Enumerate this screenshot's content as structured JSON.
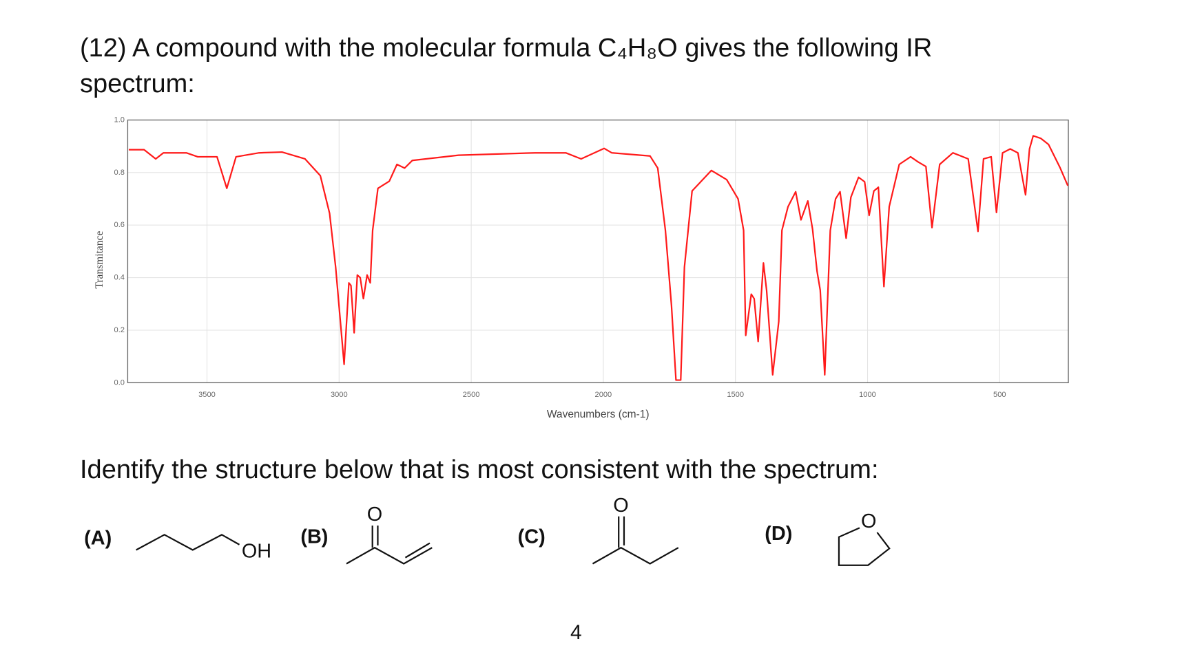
{
  "question": {
    "intro": "(12) A compound with the molecular formula C₄H₈O gives the following IR spectrum:",
    "prompt": "Identify the structure below that is most consistent with the spectrum:"
  },
  "chart_data": {
    "type": "line",
    "xlabel": "Wavenumbers (cm-1)",
    "ylabel": "Transmitance",
    "x": [
      3796,
      3738,
      3694,
      3665,
      3578,
      3535,
      3462,
      3425,
      3390,
      3303,
      3216,
      3129,
      3071,
      3036,
      3013,
      2981,
      2963,
      2955,
      2943,
      2931,
      2920,
      2908,
      2894,
      2882,
      2873,
      2853,
      2810,
      2781,
      2752,
      2723,
      2548,
      2258,
      2142,
      2084,
      1997,
      1968,
      1823,
      1794,
      1765,
      1742,
      1725,
      1707,
      1693,
      1664,
      1591,
      1533,
      1490,
      1469,
      1461,
      1440,
      1429,
      1414,
      1394,
      1382,
      1359,
      1336,
      1324,
      1301,
      1272,
      1252,
      1226,
      1208,
      1191,
      1179,
      1162,
      1141,
      1121,
      1104,
      1081,
      1063,
      1034,
      1011,
      994,
      976,
      959,
      938,
      918,
      880,
      837,
      808,
      779,
      756,
      727,
      677,
      619,
      582,
      561,
      532,
      512,
      489,
      460,
      431,
      402,
      387,
      373,
      344,
      315,
      272,
      242
    ],
    "series": [
      {
        "name": "spectrum",
        "color": "#ff1a1a",
        "values": [
          0.887,
          0.887,
          0.852,
          0.875,
          0.875,
          0.86,
          0.86,
          0.74,
          0.86,
          0.875,
          0.878,
          0.852,
          0.788,
          0.645,
          0.44,
          0.07,
          0.38,
          0.37,
          0.19,
          0.41,
          0.4,
          0.32,
          0.41,
          0.38,
          0.58,
          0.74,
          0.767,
          0.831,
          0.817,
          0.846,
          0.866,
          0.875,
          0.875,
          0.852,
          0.892,
          0.875,
          0.863,
          0.817,
          0.58,
          0.294,
          0.01,
          0.01,
          0.44,
          0.73,
          0.808,
          0.773,
          0.7,
          0.58,
          0.18,
          0.337,
          0.32,
          0.157,
          0.456,
          0.352,
          0.03,
          0.233,
          0.58,
          0.67,
          0.727,
          0.62,
          0.692,
          0.584,
          0.424,
          0.352,
          0.03,
          0.58,
          0.7,
          0.727,
          0.55,
          0.706,
          0.782,
          0.765,
          0.637,
          0.73,
          0.744,
          0.366,
          0.67,
          0.831,
          0.86,
          0.84,
          0.823,
          0.59,
          0.831,
          0.875,
          0.852,
          0.576,
          0.852,
          0.86,
          0.648,
          0.875,
          0.89,
          0.875,
          0.715,
          0.89,
          0.94,
          0.93,
          0.907,
          0.82,
          0.75
        ]
      }
    ],
    "xlim": [
      3800,
      240
    ],
    "ylim": [
      0,
      1
    ],
    "xticks": [
      3500,
      3000,
      2500,
      2000,
      1500,
      1000,
      500
    ],
    "yticks": [
      {
        "value": 0,
        "label": "0.0"
      },
      0.2,
      0.4,
      0.6,
      0.8,
      {
        "value": 1,
        "label": "1.0"
      }
    ],
    "grid": true
  },
  "options": [
    {
      "label": "(A)",
      "atoms": [
        "OH"
      ]
    },
    {
      "label": "(B)",
      "atoms": [
        "O"
      ]
    },
    {
      "label": "(C)",
      "atoms": [
        "O"
      ]
    },
    {
      "label": "(D)",
      "atoms": [
        "O"
      ]
    }
  ],
  "page_number": "4"
}
